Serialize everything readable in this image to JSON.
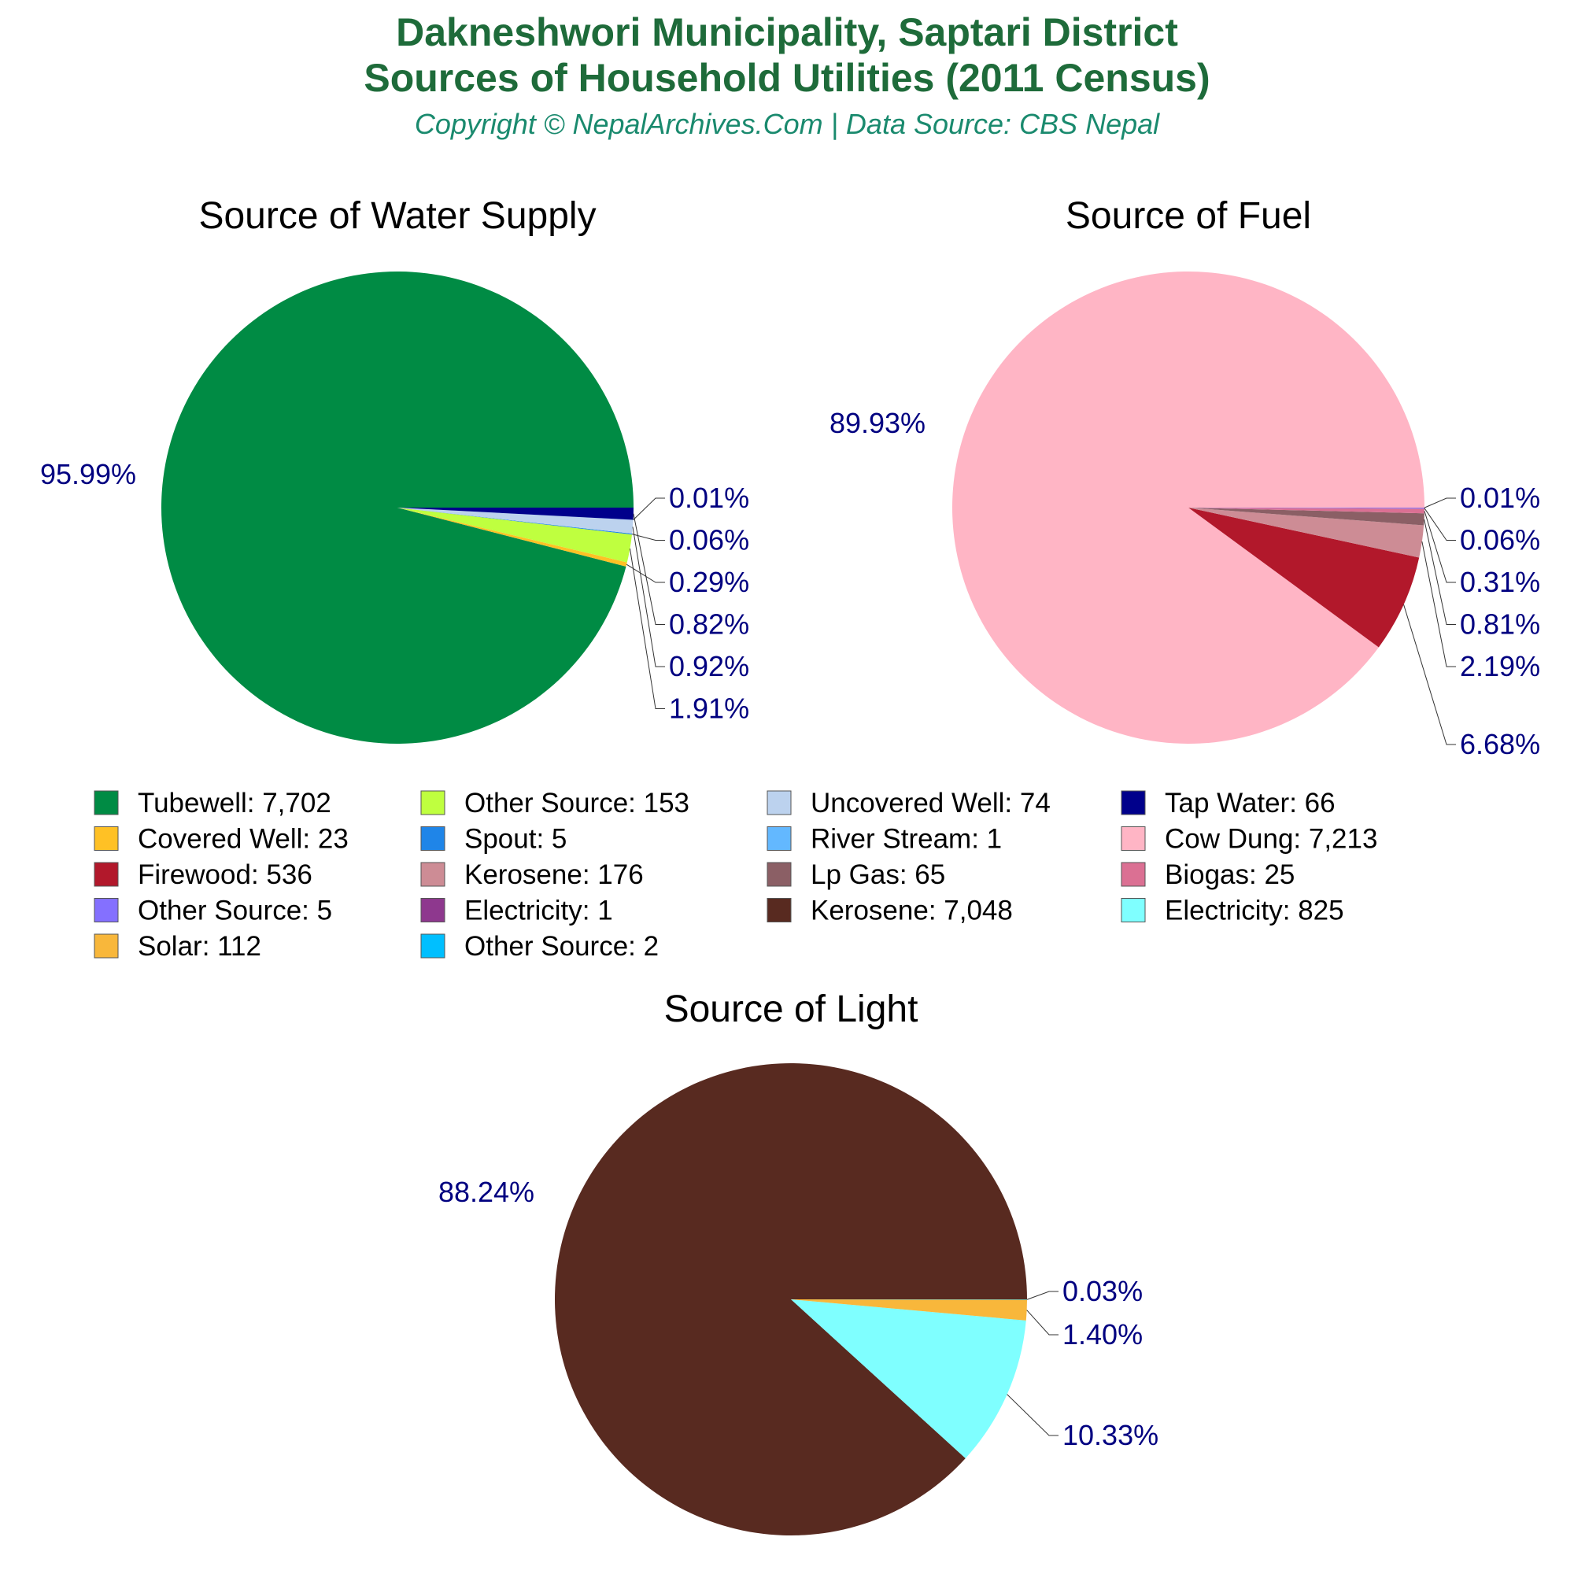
{
  "title_line1": "Dakneshwori Municipality, Saptari District",
  "title_line2": "Sources of Household Utilities (2011 Census)",
  "subtitle": "Copyright © NepalArchives.Com | Data Source: CBS Nepal",
  "chart_data": [
    {
      "type": "pie",
      "title": "Source of Water Supply",
      "slices": [
        {
          "name": "Tubewell",
          "value": 7702,
          "pct_label": "95.99%",
          "color": "#008b44"
        },
        {
          "name": "Covered Well",
          "value": 23,
          "pct_label": "0.29%",
          "color": "#ffc125"
        },
        {
          "name": "Other Source",
          "value": 153,
          "pct_label": "1.91%",
          "color": "#bfff3f"
        },
        {
          "name": "Spout",
          "value": 5,
          "pct_label": "0.06%",
          "color": "#1f85e8"
        },
        {
          "name": "Uncovered Well",
          "value": 74,
          "pct_label": "0.92%",
          "color": "#bcd2ee"
        },
        {
          "name": "River Stream",
          "value": 1,
          "pct_label": "0.01%",
          "color": "#63b8ff"
        },
        {
          "name": "Tap Water",
          "value": 66,
          "pct_label": "0.82%",
          "color": "#00008b"
        }
      ],
      "label_order": [
        "0.01%",
        "0.06%",
        "0.29%",
        "0.82%",
        "0.92%",
        "1.91%"
      ],
      "big_label": "95.99%"
    },
    {
      "type": "pie",
      "title": "Source of Fuel",
      "slices": [
        {
          "name": "Cow Dung",
          "value": 7213,
          "pct_label": "89.93%",
          "color": "#ffb5c5"
        },
        {
          "name": "Firewood",
          "value": 536,
          "pct_label": "6.68%",
          "color": "#b2182b"
        },
        {
          "name": "Kerosene",
          "value": 176,
          "pct_label": "2.19%",
          "color": "#cd8c95"
        },
        {
          "name": "Lp Gas",
          "value": 65,
          "pct_label": "0.81%",
          "color": "#8b5f65"
        },
        {
          "name": "Biogas",
          "value": 25,
          "pct_label": "0.31%",
          "color": "#db7093"
        },
        {
          "name": "Other Source",
          "value": 5,
          "pct_label": "0.06%",
          "color": "#8470ff"
        },
        {
          "name": "Electricity",
          "value": 1,
          "pct_label": "0.01%",
          "color": "#8e388e"
        }
      ],
      "label_order": [
        "0.01%",
        "0.06%",
        "0.31%",
        "0.81%",
        "2.19%",
        "6.68%"
      ],
      "big_label": "89.93%"
    },
    {
      "type": "pie",
      "title": "Source of Light",
      "slices": [
        {
          "name": "Kerosene",
          "value": 7048,
          "pct_label": "88.24%",
          "color": "#582a20"
        },
        {
          "name": "Electricity",
          "value": 825,
          "pct_label": "10.33%",
          "color": "#7fffff"
        },
        {
          "name": "Solar",
          "value": 112,
          "pct_label": "1.40%",
          "color": "#f8b73b"
        },
        {
          "name": "Other Source",
          "value": 2,
          "pct_label": "0.03%",
          "color": "#00bfff"
        }
      ],
      "label_order": [
        "0.03%",
        "1.40%",
        "10.33%"
      ],
      "big_label": "88.24%"
    }
  ],
  "legend": [
    {
      "label": "Tubewell: 7,702",
      "color": "#008b44"
    },
    {
      "label": "Other Source: 153",
      "color": "#bfff3f"
    },
    {
      "label": "Uncovered Well: 74",
      "color": "#bcd2ee"
    },
    {
      "label": "Tap Water: 66",
      "color": "#00008b"
    },
    {
      "label": "Covered Well: 23",
      "color": "#ffc125"
    },
    {
      "label": "Spout: 5",
      "color": "#1f85e8"
    },
    {
      "label": "River Stream: 1",
      "color": "#63b8ff"
    },
    {
      "label": "Cow Dung: 7,213",
      "color": "#ffb5c5"
    },
    {
      "label": "Firewood: 536",
      "color": "#b2182b"
    },
    {
      "label": "Kerosene: 176",
      "color": "#cd8c95"
    },
    {
      "label": "Lp Gas: 65",
      "color": "#8b5f65"
    },
    {
      "label": "Biogas: 25",
      "color": "#db7093"
    },
    {
      "label": "Other Source: 5",
      "color": "#8470ff"
    },
    {
      "label": "Electricity: 1",
      "color": "#8e388e"
    },
    {
      "label": "Kerosene: 7,048",
      "color": "#582a20"
    },
    {
      "label": "Electricity: 825",
      "color": "#7fffff"
    },
    {
      "label": "Solar: 112",
      "color": "#f8b73b"
    },
    {
      "label": "Other Source: 2",
      "color": "#00bfff"
    }
  ]
}
